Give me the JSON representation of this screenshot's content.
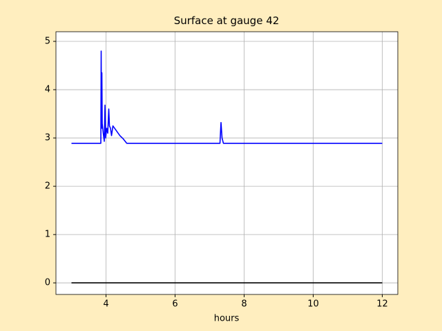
{
  "chart_data": {
    "type": "line",
    "title": "Surface at gauge 42",
    "xlabel": "hours",
    "xlim": [
      2.55,
      12.45
    ],
    "ylim": [
      -0.24,
      5.2
    ],
    "xticks": [
      4,
      6,
      8,
      10,
      12
    ],
    "yticks": [
      0,
      1,
      2,
      3,
      4,
      5
    ],
    "grid": true,
    "series": [
      {
        "color": "#0000ff",
        "x": [
          3.0,
          3.85,
          3.86,
          3.87,
          3.88,
          3.89,
          3.92,
          3.95,
          3.97,
          3.99,
          4.02,
          4.05,
          4.08,
          4.1,
          4.13,
          4.16,
          4.2,
          4.25,
          4.3,
          4.4,
          4.5,
          4.6,
          7.3,
          7.33,
          7.36,
          7.4,
          12.0
        ],
        "values": [
          2.89,
          2.89,
          4.8,
          3.2,
          4.35,
          3.3,
          3.1,
          2.93,
          3.68,
          3.0,
          3.2,
          3.1,
          3.6,
          3.25,
          3.2,
          3.05,
          3.25,
          3.2,
          3.15,
          3.05,
          2.98,
          2.89,
          2.89,
          3.32,
          3.0,
          2.89,
          2.89
        ]
      },
      {
        "color": "#000000",
        "x": [
          3.0,
          12.0
        ],
        "values": [
          0,
          0
        ]
      }
    ]
  }
}
